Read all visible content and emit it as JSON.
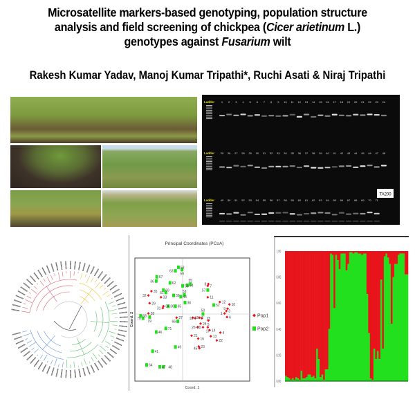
{
  "title": {
    "line1": "Microsatellite markers-based genotyping, population structure",
    "line2_pre": "analysis and field screening of chickpea (",
    "line2_italic": "Cicer arietinum",
    "line2_post": " L.)",
    "line3_pre": "genotypes against ",
    "line3_italic": "Fusarium",
    "line3_post": " wilt"
  },
  "authors": "Rakesh Kumar Yadav, Manoj Kumar Tripathi*, Ruchi Asati & Niraj Tripathi",
  "colors": {
    "pop1": "#e8141b",
    "pop2": "#22e01e",
    "gel_bg": "#0b0b0b",
    "ladder_label": "#e8e020",
    "tree_blue": "#5b8fd6",
    "tree_green": "#5cbf6a",
    "tree_yellow": "#f0c040",
    "tree_red": "#d9606a"
  },
  "field_photos": [
    "chickpea-field-rows",
    "wilted-plant-closeup",
    "field-plot-wide",
    "field-plot-rows",
    "field-plot-labels"
  ],
  "gel": {
    "ladder_label": "Ladder",
    "marker_label": "TA200",
    "rows": [
      {
        "lanes": [
          "1",
          "2",
          "3",
          "4",
          "5",
          "6",
          "7",
          "8",
          "9",
          "10",
          "11",
          "12",
          "13",
          "14",
          "15",
          "16",
          "17",
          "18",
          "19",
          "20",
          "21",
          "22",
          "23",
          "24"
        ]
      },
      {
        "lanes": [
          "25",
          "26",
          "27",
          "28",
          "29",
          "30",
          "31",
          "32",
          "33",
          "34",
          "35",
          "36",
          "37",
          "38",
          "39",
          "40",
          "41",
          "42",
          "43",
          "44",
          "45",
          "46",
          "47",
          "48"
        ]
      },
      {
        "lanes": [
          "49",
          "50",
          "51",
          "52",
          "53",
          "54",
          "55",
          "56",
          "57",
          "58",
          "59",
          "60",
          "61",
          "62",
          "63",
          "64",
          "65",
          "66",
          "67",
          "68",
          "69",
          "70",
          "71"
        ]
      }
    ]
  },
  "dendrogram": {
    "type": "circular",
    "clusters": [
      "blue",
      "green",
      "yellow",
      "red"
    ]
  },
  "chart_data": [
    {
      "type": "scatter",
      "title": "Principal Coordinates (PCoA)",
      "xlabel": "Coord. 1",
      "ylabel": "Coord. 2",
      "legend": {
        "placement": "right",
        "entries": [
          "Pop1",
          "Pop2"
        ]
      },
      "series": [
        {
          "name": "Pop1",
          "marker": "diamond",
          "color": "#e8141b",
          "points": [
            {
              "label": "35",
              "x": -0.52,
              "y": 0.38
            },
            {
              "label": "32",
              "x": -0.57,
              "y": 0.31
            },
            {
              "label": "33",
              "x": -0.36,
              "y": 0.28
            },
            {
              "label": "29",
              "x": -0.55,
              "y": 0.18
            },
            {
              "label": "34",
              "x": -0.32,
              "y": 0.13
            },
            {
              "label": "31",
              "x": -0.33,
              "y": 0.1
            },
            {
              "label": "28",
              "x": -0.57,
              "y": 0.01
            },
            {
              "label": "27",
              "x": -0.1,
              "y": -0.06
            },
            {
              "label": "7",
              "x": 0.42,
              "y": 0.47
            },
            {
              "label": "8",
              "x": 0.43,
              "y": 0.5
            },
            {
              "label": "11",
              "x": 0.42,
              "y": 0.28
            },
            {
              "label": "12",
              "x": 0.62,
              "y": 0.2
            },
            {
              "label": "10",
              "x": 0.78,
              "y": 0.16
            },
            {
              "label": "9",
              "x": 0.75,
              "y": 0.09
            },
            {
              "label": "3",
              "x": 0.73,
              "y": 0.05
            },
            {
              "label": "1",
              "x": 0.7,
              "y": 0.01
            },
            {
              "label": "6",
              "x": 0.74,
              "y": -0.05
            },
            {
              "label": "15",
              "x": 0.17,
              "y": -0.06
            },
            {
              "label": "18",
              "x": 0.21,
              "y": -0.07
            },
            {
              "label": "2",
              "x": 0.28,
              "y": -0.06
            },
            {
              "label": "25",
              "x": 0.32,
              "y": -0.07
            },
            {
              "label": "5",
              "x": 0.43,
              "y": -0.11
            },
            {
              "label": "24",
              "x": 0.3,
              "y": -0.16
            },
            {
              "label": "26",
              "x": 0.25,
              "y": -0.22
            },
            {
              "label": "20",
              "x": 0.34,
              "y": -0.22
            },
            {
              "label": "17",
              "x": 0.42,
              "y": -0.22
            },
            {
              "label": "14",
              "x": 0.45,
              "y": -0.27
            },
            {
              "label": "13",
              "x": 0.47,
              "y": -0.37
            },
            {
              "label": "4",
              "x": 0.63,
              "y": -0.31
            },
            {
              "label": "22",
              "x": 0.57,
              "y": -0.44
            },
            {
              "label": "21",
              "x": 0.15,
              "y": -0.36
            },
            {
              "label": "16",
              "x": 0.26,
              "y": -0.41
            },
            {
              "label": "23",
              "x": 0.27,
              "y": -0.54
            },
            {
              "label": "45",
              "x": 0.28,
              "y": -0.57
            }
          ]
        },
        {
          "name": "Pop2",
          "marker": "square",
          "color": "#22e01e",
          "points": [
            {
              "label": "58",
              "x": -0.07,
              "y": 0.78
            },
            {
              "label": "59",
              "x": -0.01,
              "y": 0.74
            },
            {
              "label": "63",
              "x": -0.12,
              "y": 0.72
            },
            {
              "label": "67",
              "x": -0.43,
              "y": 0.62
            },
            {
              "label": "36",
              "x": -0.44,
              "y": 0.55
            },
            {
              "label": "62",
              "x": -0.21,
              "y": 0.52
            },
            {
              "label": "56",
              "x": 0.0,
              "y": 0.47
            },
            {
              "label": "54",
              "x": 0.08,
              "y": 0.48
            },
            {
              "label": "55",
              "x": 0.13,
              "y": 0.5
            },
            {
              "label": "57",
              "x": 0.42,
              "y": 0.4
            },
            {
              "label": "69",
              "x": -0.32,
              "y": 0.4
            },
            {
              "label": "61",
              "x": -0.28,
              "y": 0.36
            },
            {
              "label": "39",
              "x": -0.15,
              "y": 0.31
            },
            {
              "label": "44",
              "x": -0.03,
              "y": 0.29
            },
            {
              "label": "53",
              "x": 0.03,
              "y": 0.32
            },
            {
              "label": "38",
              "x": 0.04,
              "y": 0.19
            },
            {
              "label": "52",
              "x": 0.52,
              "y": 0.15
            },
            {
              "label": "30",
              "x": -0.24,
              "y": 0.13
            },
            {
              "label": "65",
              "x": -0.12,
              "y": 0.13
            },
            {
              "label": "68",
              "x": -0.7,
              "y": -0.03
            },
            {
              "label": "70",
              "x": -0.66,
              "y": -0.07
            },
            {
              "label": "19",
              "x": -0.55,
              "y": -0.05
            },
            {
              "label": "50",
              "x": 0.34,
              "y": 0.0
            },
            {
              "label": "66",
              "x": -0.08,
              "y": -0.12
            },
            {
              "label": "71",
              "x": -0.28,
              "y": -0.24
            },
            {
              "label": "46",
              "x": -0.44,
              "y": -0.3
            },
            {
              "label": "49",
              "x": -0.12,
              "y": -0.55
            },
            {
              "label": "41",
              "x": -0.5,
              "y": -0.62
            },
            {
              "label": "64",
              "x": -0.6,
              "y": -0.85
            },
            {
              "label": "47",
              "x": -0.38,
              "y": -0.88
            },
            {
              "label": "48",
              "x": -0.32,
              "y": -0.88
            }
          ]
        }
      ],
      "grid": false
    },
    {
      "type": "bar",
      "stacked": true,
      "ylim": [
        0,
        1
      ],
      "yticks": [
        "0.00",
        "0.20",
        "0.40",
        "0.60",
        "0.80",
        "1.00"
      ],
      "series": [
        {
          "color": "#22e01e",
          "values": [
            0.04,
            0.03,
            0.02,
            0.01,
            0.02,
            0.01,
            0.03,
            0.02,
            0.01,
            0.08,
            0.02,
            0.02,
            0.03,
            0.05,
            0.05,
            0.03,
            0.04,
            0.02,
            0.25,
            0.17,
            0.03,
            0.05,
            0.01,
            0.09,
            0.09,
            0.4,
            0.98,
            0.97,
            0.56,
            0.97,
            0.93,
            0.86,
            0.98,
            0.98,
            0.98,
            0.85,
            0.9,
            0.99,
            0.99,
            0.98,
            0.99,
            0.99,
            0.98,
            0.98,
            0.97,
            0.98,
            0.98,
            0.67,
            0.37,
            0.02,
            0.01,
            0.25,
            0.17,
            0.23,
            0.17,
            0.78,
            0.25,
            0.96,
            0.98,
            0.95,
            0.9,
            0.44,
            0.8,
            0.9,
            0.9,
            0.97,
            0.98,
            0.98,
            0.98,
            0.82,
            0.82
          ]
        },
        {
          "color": "#e8141b",
          "values": "remainder to 1.00"
        }
      ],
      "grid": false
    }
  ]
}
